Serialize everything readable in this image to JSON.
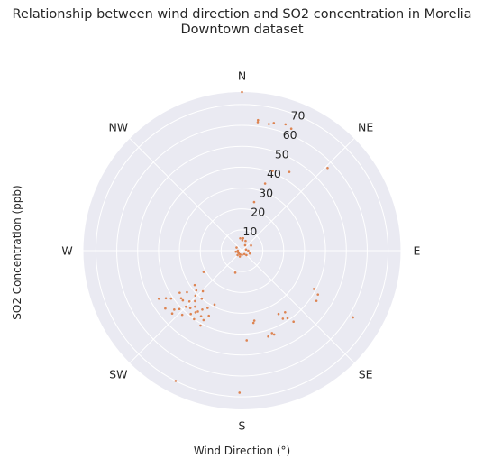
{
  "chart_data": {
    "type": "scatter",
    "projection": "polar",
    "title": "Relationship between wind direction and SO2 concentration in Morelia Downtown dataset",
    "title_lines": [
      "Relationship between wind direction and SO2 concentration in Morelia",
      "Downtown dataset"
    ],
    "xlabel": "Wind Direction (°)",
    "ylabel": "SO2 Concentration (ppb)",
    "theta_direction": "clockwise",
    "theta_zero": "N",
    "theta_labels": [
      {
        "angle": 0,
        "label": "N"
      },
      {
        "angle": 45,
        "label": "NE"
      },
      {
        "angle": 90,
        "label": "E"
      },
      {
        "angle": 135,
        "label": "SE"
      },
      {
        "angle": 180,
        "label": "S"
      },
      {
        "angle": 225,
        "label": "SW"
      },
      {
        "angle": 270,
        "label": "W"
      },
      {
        "angle": 315,
        "label": "NW"
      }
    ],
    "r_ticks": [
      10,
      20,
      30,
      40,
      50,
      60,
      70
    ],
    "r_max": 76,
    "grid": true,
    "background": "#eaeaf2",
    "grid_color": "#ffffff",
    "point_color": "#dd8452",
    "points": [
      {
        "theta": 0,
        "r": 76
      },
      {
        "theta": 7,
        "r": 63
      },
      {
        "theta": 7,
        "r": 62
      },
      {
        "theta": 12,
        "r": 62
      },
      {
        "theta": 14,
        "r": 63
      },
      {
        "theta": 19,
        "r": 64
      },
      {
        "theta": 22,
        "r": 63
      },
      {
        "theta": 31,
        "r": 44
      },
      {
        "theta": 21,
        "r": 41
      },
      {
        "theta": 19,
        "r": 34
      },
      {
        "theta": 14,
        "r": 24
      },
      {
        "theta": 46,
        "r": 57
      },
      {
        "theta": 124,
        "r": 43
      },
      {
        "theta": 120,
        "r": 42
      },
      {
        "theta": 118,
        "r": 39
      },
      {
        "theta": 121,
        "r": 62
      },
      {
        "theta": 144,
        "r": 42
      },
      {
        "theta": 146,
        "r": 39
      },
      {
        "theta": 145,
        "r": 36
      },
      {
        "theta": 149,
        "r": 38
      },
      {
        "theta": 150,
        "r": 35
      },
      {
        "theta": 159,
        "r": 43
      },
      {
        "theta": 160,
        "r": 42
      },
      {
        "theta": 163,
        "r": 43
      },
      {
        "theta": 177,
        "r": 43
      },
      {
        "theta": 181,
        "r": 68
      },
      {
        "theta": 207,
        "r": 70
      },
      {
        "theta": 209,
        "r": 38
      },
      {
        "theta": 215,
        "r": 40
      },
      {
        "theta": 212,
        "r": 37
      },
      {
        "theta": 217,
        "r": 37
      },
      {
        "theta": 220,
        "r": 35
      },
      {
        "theta": 222,
        "r": 37
      },
      {
        "theta": 225,
        "r": 38
      },
      {
        "theta": 227,
        "r": 41
      },
      {
        "theta": 229,
        "r": 43
      },
      {
        "theta": 232,
        "r": 37
      },
      {
        "theta": 233,
        "r": 46
      },
      {
        "theta": 236,
        "r": 41
      },
      {
        "theta": 238,
        "r": 43
      },
      {
        "theta": 240,
        "r": 46
      },
      {
        "theta": 219,
        "r": 39
      },
      {
        "theta": 214,
        "r": 34
      },
      {
        "theta": 220,
        "r": 30
      },
      {
        "theta": 207,
        "r": 29
      },
      {
        "theta": 223,
        "r": 33
      },
      {
        "theta": 230,
        "r": 37
      },
      {
        "theta": 226,
        "r": 31
      },
      {
        "theta": 211,
        "r": 32
      },
      {
        "theta": 233,
        "r": 33
      },
      {
        "theta": 226,
        "r": 35
      },
      {
        "theta": 229,
        "r": 29
      },
      {
        "theta": 224,
        "r": 27
      },
      {
        "theta": 207,
        "r": 35
      },
      {
        "theta": 236,
        "r": 36
      },
      {
        "theta": 228,
        "r": 45
      },
      {
        "theta": 223,
        "r": 42
      },
      {
        "theta": 216,
        "r": 36
      },
      {
        "theta": 209,
        "r": 41
      },
      {
        "theta": 234,
        "r": 28
      },
      {
        "theta": 241,
        "r": 21
      },
      {
        "theta": 197,
        "r": 11
      },
      {
        "theta": 170,
        "r": 34
      },
      {
        "theta": 171,
        "r": 35
      },
      {
        "theta": 5,
        "r": 6
      },
      {
        "theta": 2,
        "r": 5
      },
      {
        "theta": 352,
        "r": 6
      },
      {
        "theta": 20,
        "r": 5
      },
      {
        "theta": 30,
        "r": 3
      },
      {
        "theta": 60,
        "r": 5
      },
      {
        "theta": 75,
        "r": 2
      },
      {
        "theta": 110,
        "r": 4
      },
      {
        "theta": 145,
        "r": 2
      },
      {
        "theta": 200,
        "r": 3
      },
      {
        "theta": 225,
        "r": 3
      },
      {
        "theta": 250,
        "r": 2
      },
      {
        "theta": 270,
        "r": 2
      },
      {
        "theta": 300,
        "r": 3
      },
      {
        "theta": 210,
        "r": 2
      },
      {
        "theta": 180,
        "r": 2
      },
      {
        "theta": 90,
        "r": 3
      },
      {
        "theta": 235,
        "r": 2
      },
      {
        "theta": 260,
        "r": 3
      },
      {
        "theta": 135,
        "r": 3
      }
    ]
  }
}
